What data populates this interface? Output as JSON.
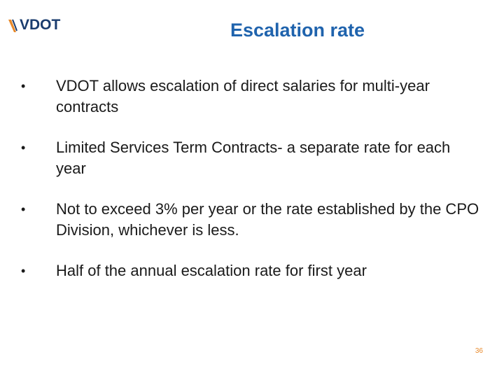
{
  "header": {
    "logo": "VDOT",
    "title": "Escalation rate"
  },
  "bullets": [
    "VDOT allows escalation of direct salaries for multi-year contracts",
    "Limited Services Term Contracts- a separate rate for each year",
    "Not to exceed 3% per year or the rate established by the CPO Division, whichever is less.",
    "Half of the annual escalation rate for first year"
  ],
  "footer": {
    "page_number": "36"
  }
}
